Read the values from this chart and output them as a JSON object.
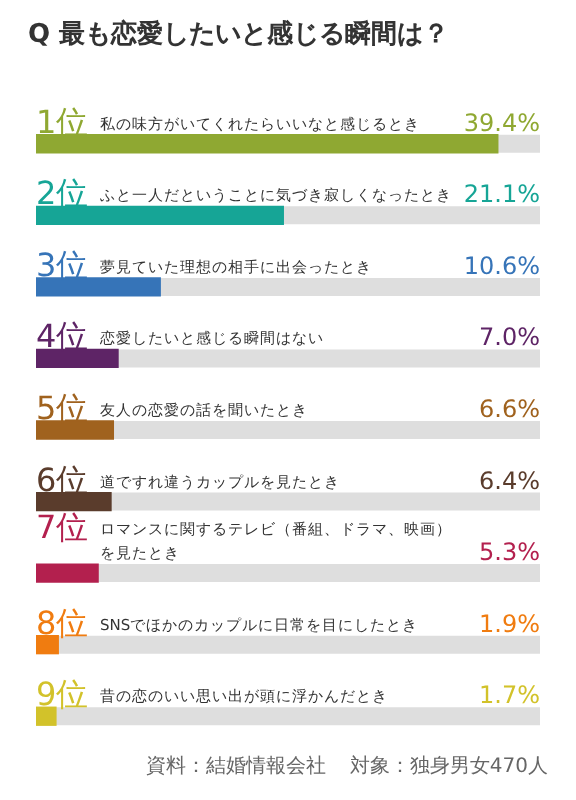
{
  "chart_data": {
    "type": "bar",
    "orientation": "horizontal",
    "title": "Q 最も恋愛したいと感じる瞬間は？",
    "categories": [
      "1位 私の味方がいてくれたらいいなと感じるとき",
      "2位 ふと一人だということに気づき寂しくなったとき",
      "3位 夢見ていた理想の相手に出会ったとき",
      "4位 恋愛したいと感じる瞬間はない",
      "5位 友人の恋愛の話を聞いたとき",
      "6位 道ですれ違うカップルを見たとき",
      "7位 ロマンスに関するテレビ（番組、ドラマ、映画）を見たとき",
      "8位 SNSでほかのカップルに日常を目にしたとき",
      "9位 昔の恋のいい思い出が頭に浮かんだとき"
    ],
    "values": [
      39.4,
      21.1,
      10.6,
      7.0,
      6.6,
      6.4,
      5.3,
      1.9,
      1.7
    ],
    "colors": [
      "#8fa832",
      "#16a596",
      "#3674b8",
      "#5e2466",
      "#a0621e",
      "#5a3c2c",
      "#b3204e",
      "#f07c10",
      "#d2c22a"
    ],
    "value_labels": [
      "39.4%",
      "21.1%",
      "10.6%",
      "7.0%",
      "6.6%",
      "6.4%",
      "5.3%",
      "1.9%",
      "1.7%"
    ],
    "xlim": [
      0,
      43
    ],
    "grid": false,
    "legend": false,
    "annotations": [
      "資料：結婚情報会社",
      "対象：独身男女470人"
    ]
  }
}
